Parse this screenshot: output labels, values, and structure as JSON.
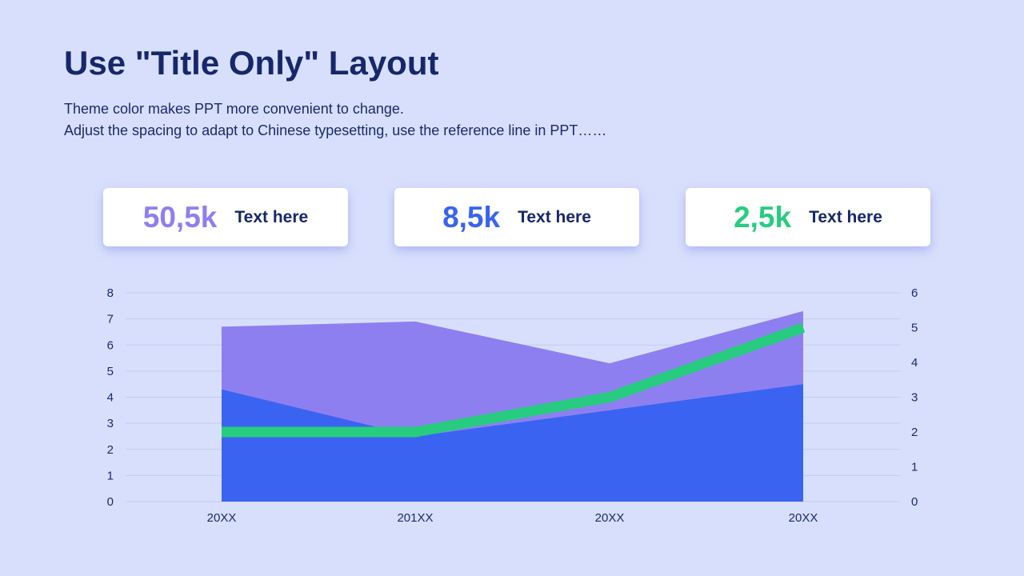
{
  "header": {
    "title": "Use \"Title Only\" Layout",
    "subtitle_line1": "Theme color makes PPT more convenient to change.",
    "subtitle_line2": "Adjust the spacing to adapt to Chinese typesetting, use the reference line in PPT……"
  },
  "stats": [
    {
      "value": "50,5k",
      "label": "Text here",
      "color": "#8e7ff0"
    },
    {
      "value": "8,5k",
      "label": "Text here",
      "color": "#3a63f2"
    },
    {
      "value": "2,5k",
      "label": "Text here",
      "color": "#28cc80"
    }
  ],
  "colors": {
    "background": "#d8dffc",
    "title": "#16286a",
    "purple": "#8e7ff0",
    "blue": "#3a63f2",
    "green": "#28cc80",
    "grid": "#c3cbee"
  },
  "chart_data": {
    "type": "area",
    "categories": [
      "20XX",
      "201XX",
      "20XX",
      "20XX"
    ],
    "series": [
      {
        "type": "area",
        "axis": "left",
        "stacked": true,
        "color": "#3a63f2",
        "values": [
          4.3,
          2.5,
          3.5,
          4.5
        ]
      },
      {
        "type": "area",
        "axis": "left",
        "stacked": true,
        "color": "#8e7ff0",
        "values": [
          2.4,
          4.4,
          1.8,
          2.8
        ]
      },
      {
        "type": "line",
        "axis": "right",
        "color": "#28cc80",
        "values": [
          2,
          2,
          3,
          5
        ]
      }
    ],
    "y_left": {
      "min": 0,
      "max": 8,
      "ticks": [
        0,
        1,
        2,
        3,
        4,
        5,
        6,
        7,
        8
      ]
    },
    "y_right": {
      "min": 0,
      "max": 6,
      "ticks": [
        0,
        1,
        2,
        3,
        4,
        5,
        6
      ]
    },
    "grid": true,
    "legend": "none"
  }
}
